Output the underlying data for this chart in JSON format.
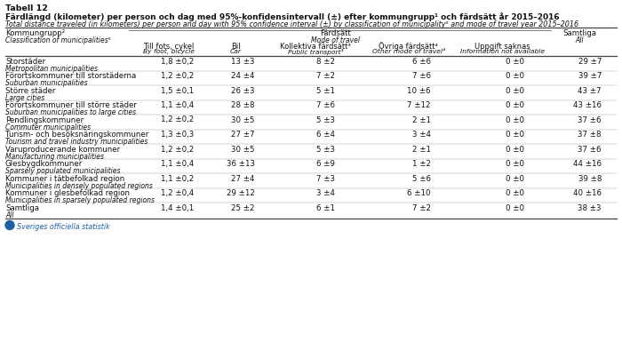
{
  "title_bold": "Tabell 12",
  "title_swedish": "Färdlängd (kilometer) per person och dag med 95%-konfidensintervall (±) efter kommungrupp¹ och färdsätt år 2015–2016",
  "title_english": "Total distance traveled (in kilometers) per person and day with 95% confidence interval (±) by classification of municipality⁵ and mode of travel year 2015–2016",
  "col_header_sw": "Kommungrupp²",
  "col_header_en": "Classification of municipalities⁵",
  "fardsatt_sw": "Färdsätt",
  "fardsatt_en": "Mode of travel",
  "samtliga_sw": "Samtliga",
  "samtliga_en": "All",
  "subheaders_sw": [
    "Till fots, cykel",
    "Bil",
    "Kollektiva färdsätt³",
    "Övriga färdsätt⁴",
    "Uppgift saknas"
  ],
  "subheaders_en": [
    "By foot, bicycle",
    "Car",
    "Public transport³",
    "Other mode of travel⁴",
    "Information not available"
  ],
  "rows": [
    {
      "name_sw": "Storstäder",
      "name_en": "Metropolitan municipalities",
      "values": [
        "1,8 ±0,2",
        "13 ±3",
        "8 ±2",
        "6 ±6",
        "0 ±0",
        "29 ±7"
      ]
    },
    {
      "name_sw": "Förortskommuner till storstäderna",
      "name_en": "Suburban municipalities",
      "values": [
        "1,2 ±0,2",
        "24 ±4",
        "7 ±2",
        "7 ±6",
        "0 ±0",
        "39 ±7"
      ]
    },
    {
      "name_sw": "Större städer",
      "name_en": "Large cities",
      "values": [
        "1,5 ±0,1",
        "26 ±3",
        "5 ±1",
        "10 ±6",
        "0 ±0",
        "43 ±7"
      ]
    },
    {
      "name_sw": "Förortskommuner till större städer",
      "name_en": "Suburban municipalities to large cities",
      "values": [
        "1,1 ±0,4",
        "28 ±8",
        "7 ±6",
        "7 ±12",
        "0 ±0",
        "43 ±16"
      ]
    },
    {
      "name_sw": "Pendlingskommuner",
      "name_en": "Commuter municipalities",
      "values": [
        "1,2 ±0,2",
        "30 ±5",
        "5 ±3",
        "2 ±1",
        "0 ±0",
        "37 ±6"
      ]
    },
    {
      "name_sw": "Turism- och besöksnäringskommuner",
      "name_en": "Tourism and travel industry municipalities",
      "values": [
        "1,3 ±0,3",
        "27 ±7",
        "6 ±4",
        "3 ±4",
        "0 ±0",
        "37 ±8"
      ]
    },
    {
      "name_sw": "Varuproducerande kommuner",
      "name_en": "Manufacturing municipalities",
      "values": [
        "1,2 ±0,2",
        "30 ±5",
        "5 ±3",
        "2 ±1",
        "0 ±0",
        "37 ±6"
      ]
    },
    {
      "name_sw": "Glesbygdkommuner",
      "name_en": "Sparsely populated municipalities",
      "values": [
        "1,1 ±0,4",
        "36 ±13",
        "6 ±9",
        "1 ±2",
        "0 ±0",
        "44 ±16"
      ]
    },
    {
      "name_sw": "Kommuner i tätbefolkad region",
      "name_en": "Municipalities in densely populated regions",
      "values": [
        "1,1 ±0,2",
        "27 ±4",
        "7 ±3",
        "5 ±6",
        "0 ±0",
        "39 ±8"
      ]
    },
    {
      "name_sw": "Kommuner i glesbefolkad region",
      "name_en": "Municipalities in sparsely populated regions",
      "values": [
        "1,2 ±0,4",
        "29 ±12",
        "3 ±4",
        "6 ±10",
        "0 ±0",
        "40 ±16"
      ]
    },
    {
      "name_sw": "Samtliga",
      "name_en": "All",
      "values": [
        "1,4 ±0,1",
        "25 ±2",
        "6 ±1",
        "7 ±2",
        "0 ±0",
        "38 ±3"
      ]
    }
  ],
  "bg_color": "#ffffff",
  "scb_blue": "#1f5fa6"
}
